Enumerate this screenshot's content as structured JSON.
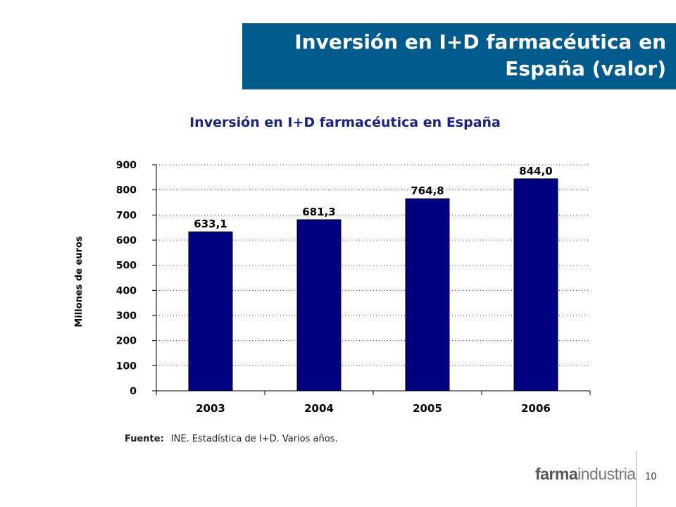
{
  "slide": {
    "title_line1": "Inversión en I+D farmacéutica en",
    "title_line2": "España (valor)",
    "source_label": "Fuente:",
    "source_text": "INE. Estadística de I+D. Varios años.",
    "logo_part1": "farma",
    "logo_part2": "industria",
    "page_number": "10"
  },
  "colors": {
    "banner": "#005a8c",
    "bar": "#000080",
    "chart_title": "#1a237e"
  },
  "chart_data": {
    "type": "bar",
    "title": "Inversión en I+D farmacéutica en España",
    "ylabel": "Millones de euros",
    "xlabel": "",
    "categories": [
      "2003",
      "2004",
      "2005",
      "2006"
    ],
    "values": [
      633.1,
      681.3,
      764.8,
      844.0
    ],
    "data_labels": [
      "633,1",
      "681,3",
      "764,8",
      "844,0"
    ],
    "ylim": [
      0,
      900
    ],
    "yticks": [
      0,
      100,
      200,
      300,
      400,
      500,
      600,
      700,
      800,
      900
    ],
    "grid": "dotted horizontal",
    "legend": "none"
  }
}
